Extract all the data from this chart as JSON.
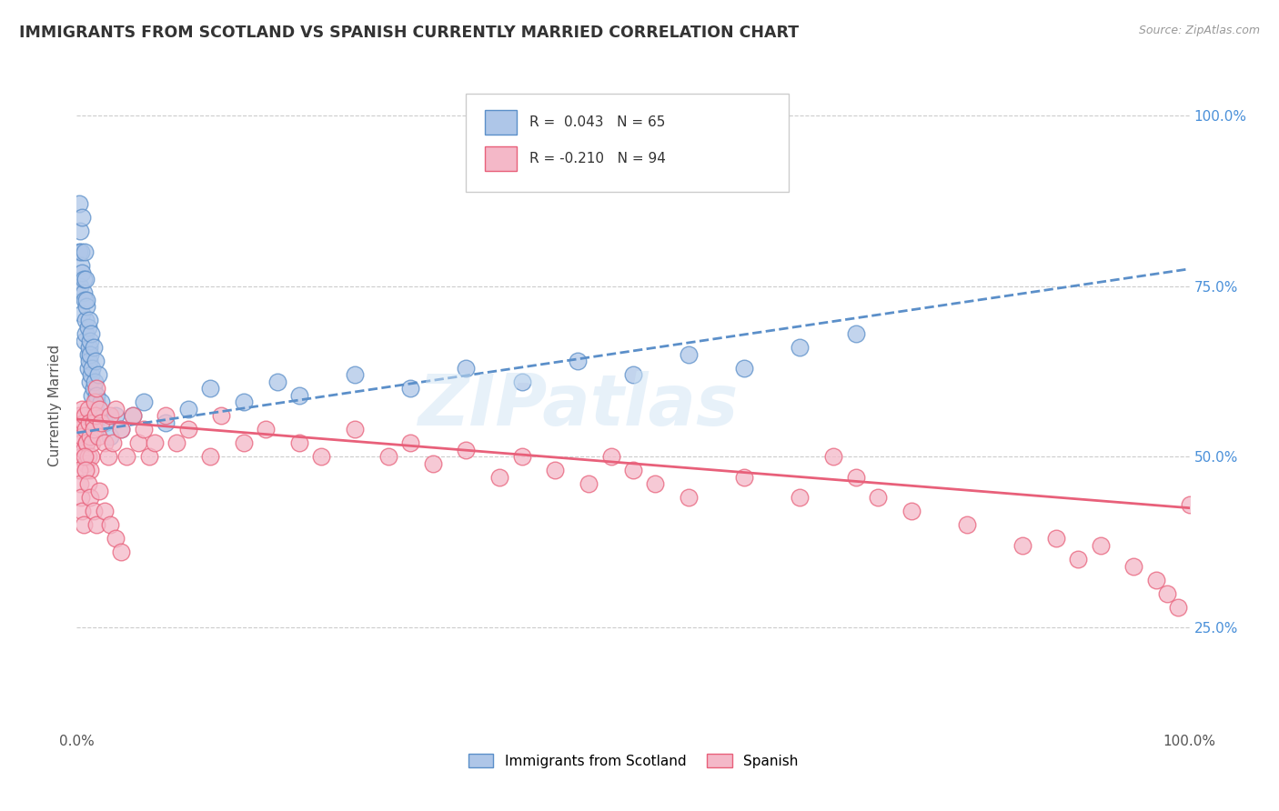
{
  "title": "IMMIGRANTS FROM SCOTLAND VS SPANISH CURRENTLY MARRIED CORRELATION CHART",
  "source_text": "Source: ZipAtlas.com",
  "ylabel": "Currently Married",
  "watermark": "ZIPatlas",
  "xlim": [
    0.0,
    1.0
  ],
  "ylim": [
    0.1,
    1.05
  ],
  "xtick_positions": [
    0.0,
    0.2,
    0.4,
    0.6,
    0.8,
    1.0
  ],
  "xtick_labels": [
    "0.0%",
    "",
    "",
    "",
    "",
    "100.0%"
  ],
  "ytick_positions": [
    0.25,
    0.5,
    0.75,
    1.0
  ],
  "ytick_labels": [
    "25.0%",
    "50.0%",
    "75.0%",
    "100.0%"
  ],
  "legend_bottom": [
    "Immigrants from Scotland",
    "Spanish"
  ],
  "legend_box_r1": "R =  0.043   N = 65",
  "legend_box_r2": "R = -0.210   N = 94",
  "series1_fill": "#aec6e8",
  "series1_edge": "#5b8fc9",
  "series2_fill": "#f4b8c8",
  "series2_edge": "#e8607a",
  "trendline1_color": "#5b8fc9",
  "trendline2_color": "#e8607a",
  "grid_color": "#cccccc",
  "background_color": "#ffffff",
  "scatter1_x": [
    0.002,
    0.003,
    0.002,
    0.004,
    0.003,
    0.005,
    0.004,
    0.005,
    0.006,
    0.005,
    0.007,
    0.006,
    0.007,
    0.008,
    0.007,
    0.008,
    0.009,
    0.008,
    0.01,
    0.009,
    0.01,
    0.011,
    0.01,
    0.011,
    0.012,
    0.011,
    0.012,
    0.013,
    0.012,
    0.013,
    0.014,
    0.015,
    0.014,
    0.015,
    0.016,
    0.017,
    0.016,
    0.018,
    0.017,
    0.019,
    0.018,
    0.02,
    0.022,
    0.025,
    0.03,
    0.035,
    0.04,
    0.05,
    0.06,
    0.08,
    0.1,
    0.12,
    0.15,
    0.18,
    0.2,
    0.25,
    0.3,
    0.35,
    0.4,
    0.45,
    0.5,
    0.55,
    0.6,
    0.65,
    0.7
  ],
  "scatter1_y": [
    0.87,
    0.83,
    0.8,
    0.78,
    0.75,
    0.85,
    0.8,
    0.77,
    0.74,
    0.71,
    0.8,
    0.76,
    0.73,
    0.7,
    0.67,
    0.76,
    0.72,
    0.68,
    0.65,
    0.73,
    0.69,
    0.66,
    0.63,
    0.7,
    0.67,
    0.64,
    0.61,
    0.68,
    0.65,
    0.62,
    0.59,
    0.66,
    0.63,
    0.6,
    0.57,
    0.64,
    0.61,
    0.58,
    0.55,
    0.62,
    0.59,
    0.56,
    0.58,
    0.55,
    0.53,
    0.56,
    0.54,
    0.56,
    0.58,
    0.55,
    0.57,
    0.6,
    0.58,
    0.61,
    0.59,
    0.62,
    0.6,
    0.63,
    0.61,
    0.64,
    0.62,
    0.65,
    0.63,
    0.66,
    0.68
  ],
  "scatter2_x": [
    0.002,
    0.003,
    0.004,
    0.005,
    0.006,
    0.004,
    0.005,
    0.006,
    0.007,
    0.008,
    0.009,
    0.01,
    0.008,
    0.009,
    0.01,
    0.011,
    0.012,
    0.013,
    0.012,
    0.015,
    0.014,
    0.016,
    0.015,
    0.018,
    0.017,
    0.02,
    0.019,
    0.022,
    0.025,
    0.028,
    0.03,
    0.032,
    0.035,
    0.04,
    0.045,
    0.05,
    0.055,
    0.06,
    0.065,
    0.07,
    0.08,
    0.09,
    0.1,
    0.12,
    0.13,
    0.15,
    0.17,
    0.2,
    0.22,
    0.25,
    0.28,
    0.3,
    0.32,
    0.35,
    0.38,
    0.4,
    0.43,
    0.46,
    0.48,
    0.5,
    0.52,
    0.55,
    0.6,
    0.65,
    0.68,
    0.7,
    0.72,
    0.75,
    0.8,
    0.85,
    0.88,
    0.9,
    0.92,
    0.95,
    0.97,
    0.98,
    0.99,
    1.0,
    0.002,
    0.003,
    0.004,
    0.005,
    0.006,
    0.007,
    0.008,
    0.01,
    0.012,
    0.015,
    0.018,
    0.02,
    0.025,
    0.03,
    0.035,
    0.04
  ],
  "scatter2_y": [
    0.56,
    0.54,
    0.52,
    0.57,
    0.55,
    0.5,
    0.53,
    0.51,
    0.56,
    0.54,
    0.52,
    0.57,
    0.49,
    0.52,
    0.5,
    0.55,
    0.53,
    0.5,
    0.48,
    0.55,
    0.52,
    0.58,
    0.54,
    0.6,
    0.56,
    0.57,
    0.53,
    0.55,
    0.52,
    0.5,
    0.56,
    0.52,
    0.57,
    0.54,
    0.5,
    0.56,
    0.52,
    0.54,
    0.5,
    0.52,
    0.56,
    0.52,
    0.54,
    0.5,
    0.56,
    0.52,
    0.54,
    0.52,
    0.5,
    0.54,
    0.5,
    0.52,
    0.49,
    0.51,
    0.47,
    0.5,
    0.48,
    0.46,
    0.5,
    0.48,
    0.46,
    0.44,
    0.47,
    0.44,
    0.5,
    0.47,
    0.44,
    0.42,
    0.4,
    0.37,
    0.38,
    0.35,
    0.37,
    0.34,
    0.32,
    0.3,
    0.28,
    0.43,
    0.48,
    0.46,
    0.44,
    0.42,
    0.4,
    0.5,
    0.48,
    0.46,
    0.44,
    0.42,
    0.4,
    0.45,
    0.42,
    0.4,
    0.38,
    0.36
  ],
  "trendline1_x0": 0.0,
  "trendline1_x1": 1.0,
  "trendline1_y0": 0.535,
  "trendline1_y1": 0.775,
  "trendline2_x0": 0.0,
  "trendline2_x1": 1.0,
  "trendline2_y0": 0.555,
  "trendline2_y1": 0.425
}
